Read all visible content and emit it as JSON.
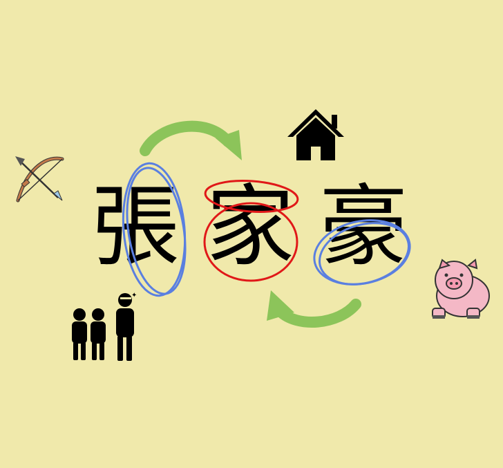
{
  "characters": {
    "zhang": "張",
    "jia": "家",
    "hao": "豪"
  },
  "colors": {
    "background": "#f0e9ab",
    "blue_circle": "#5a7fe0",
    "red_circle": "#e01818",
    "green_arrow": "#8cc45a"
  },
  "icons": [
    "bow-and-arrow-icon",
    "house-icon",
    "people-group-icon",
    "pig-icon"
  ]
}
